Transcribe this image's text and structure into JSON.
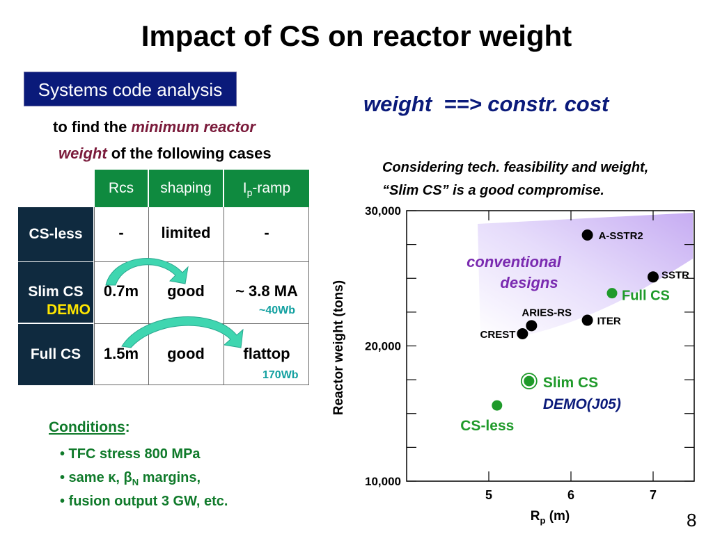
{
  "title": "Impact of CS on reactor weight",
  "tag": "Systems code analysis",
  "equation": "weight  ==> constr. cost",
  "intro": {
    "line1_plain": "to find the ",
    "line1_emph": "minimum reactor",
    "line2_emph": "weight",
    "line2_plain": " of the following cases"
  },
  "consider": {
    "line1": "Considering tech. feasibility and weight,",
    "line2": "“Slim CS” is a good compromise."
  },
  "table": {
    "headers": [
      "Rcs",
      "shaping",
      "-ramp"
    ],
    "ip_label": "I",
    "ip_sub": "p",
    "rows": [
      {
        "label": "CS-less",
        "sublabel": "",
        "rcs": "-",
        "shaping": "limited",
        "iramp": "-",
        "note": ""
      },
      {
        "label": "Slim CS",
        "sublabel": "DEMO",
        "rcs": "0.7m",
        "shaping": "good",
        "iramp": "~ 3.8 MA",
        "note": "~40Wb"
      },
      {
        "label": "Full CS",
        "sublabel": "",
        "rcs": "1.5m",
        "shaping": "good",
        "iramp": "flattop",
        "note": "170Wb"
      }
    ]
  },
  "conditions": {
    "heading": "Conditions",
    "colon": ":",
    "items": [
      {
        "pre": "• TFC stress 800 MPa"
      },
      {
        "pre": "• same κ, β",
        "sub": "N",
        "post": " margins,"
      },
      {
        "pre": "• fusion output 3 GW, etc."
      }
    ]
  },
  "page_number": "8",
  "colors": {
    "navy": "#0a1a7a",
    "table_header": "#0f8a3f",
    "row_header": "#0f2a3f",
    "green_points": "#1f9a2a",
    "purple_text": "#7a2ab0",
    "arrow": "#3fd6b0"
  },
  "chart_data": {
    "type": "scatter",
    "xlabel": "R",
    "xlabel_sub": "p",
    "xlabel_unit": " (m)",
    "ylabel": "Reactor weight (tons)",
    "xlim": [
      4.0,
      7.5
    ],
    "ylim": [
      10000,
      30000
    ],
    "x_ticks": [
      5,
      6,
      7
    ],
    "y_ticks": [
      10000,
      20000,
      30000
    ],
    "y_tick_labels": [
      "10,000",
      "20,000",
      "30,000"
    ],
    "region_label_1": "conventional",
    "region_label_2": "designs",
    "series": [
      {
        "name": "conventional",
        "color": "#000000",
        "points": [
          {
            "label": "A-SSTR2",
            "x": 6.2,
            "y": 28200
          },
          {
            "label": "SSTR",
            "x": 7.0,
            "y": 25100
          },
          {
            "label": "ARIES-RS",
            "x": 5.52,
            "y": 21500
          },
          {
            "label": "ITER",
            "x": 6.2,
            "y": 21900
          },
          {
            "label": "CREST",
            "x": 5.41,
            "y": 20900
          }
        ]
      },
      {
        "name": "CS",
        "color": "#1f9a2a",
        "points": [
          {
            "label": "Full CS",
            "x": 6.5,
            "y": 23900
          },
          {
            "label": "Slim CS",
            "label2": "DEMO(J05)",
            "x": 5.49,
            "y": 17400
          },
          {
            "label": "CS-less",
            "x": 5.1,
            "y": 15600
          }
        ]
      }
    ]
  }
}
